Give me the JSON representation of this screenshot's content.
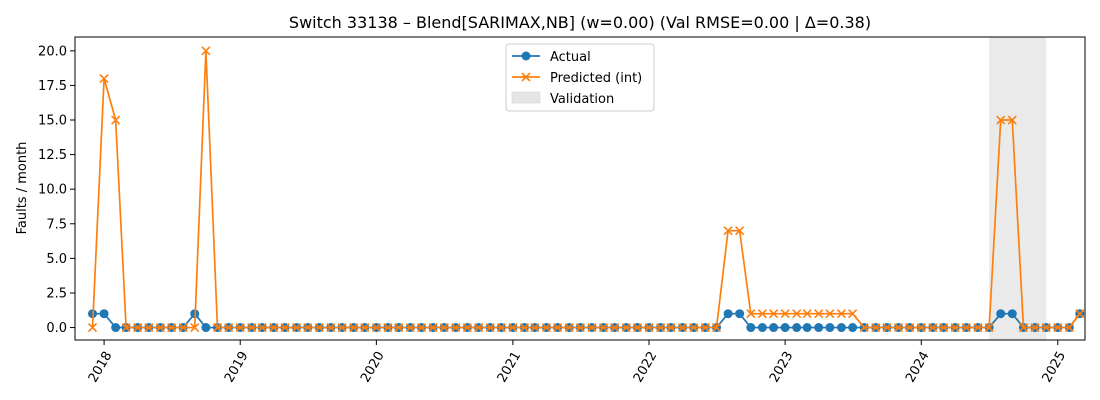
{
  "chart_data": {
    "type": "line",
    "title": "Switch 33138 – Blend[SARIMAX,NB] (w=0.00) (Val RMSE=0.00 | Δ=0.38)",
    "xlabel": "",
    "ylabel": "Faults / month",
    "ylim": [
      -0.9,
      21.0
    ],
    "yticks": [
      0.0,
      2.5,
      5.0,
      7.5,
      10.0,
      12.5,
      15.0,
      17.5,
      20.0
    ],
    "ytick_labels": [
      "0.0",
      "2.5",
      "5.0",
      "7.5",
      "10.0",
      "12.5",
      "15.0",
      "17.5",
      "20.0"
    ],
    "xlim": [
      "2017-10-15",
      "2025-03-15"
    ],
    "xticks": [
      "2018-01-01",
      "2019-01-01",
      "2020-01-01",
      "2021-01-01",
      "2022-01-01",
      "2023-01-01",
      "2024-01-01",
      "2025-01-01"
    ],
    "xtick_labels": [
      "2018",
      "2019",
      "2020",
      "2021",
      "2022",
      "2023",
      "2024",
      "2025"
    ],
    "x_start": "2017-12",
    "grid": false,
    "legend_position": "top-center",
    "shaded_region": {
      "name": "Validation",
      "x_start": "2024-07",
      "x_end": "2024-12",
      "color": "#e5e5e5"
    },
    "series": [
      {
        "name": "Actual",
        "color": "#1f77b4",
        "marker": "circle",
        "values": [
          1,
          1,
          0,
          0,
          0,
          0,
          0,
          0,
          0,
          1,
          0,
          0,
          0,
          0,
          0,
          0,
          0,
          0,
          0,
          0,
          0,
          0,
          0,
          0,
          0,
          0,
          0,
          0,
          0,
          0,
          0,
          0,
          0,
          0,
          0,
          0,
          0,
          0,
          0,
          0,
          0,
          0,
          0,
          0,
          0,
          0,
          0,
          0,
          0,
          0,
          0,
          0,
          0,
          0,
          0,
          0,
          1,
          1,
          0,
          0,
          0,
          0,
          0,
          0,
          0,
          0,
          0,
          0,
          0,
          0,
          0,
          0,
          0,
          0,
          0,
          0,
          0,
          0,
          0,
          0,
          1,
          1,
          0,
          0,
          0,
          0,
          0,
          1
        ]
      },
      {
        "name": "Predicted (int)",
        "color": "#ff7f0e",
        "marker": "x",
        "values": [
          0,
          18,
          15,
          0,
          0,
          0,
          0,
          0,
          0,
          0,
          20,
          0,
          0,
          0,
          0,
          0,
          0,
          0,
          0,
          0,
          0,
          0,
          0,
          0,
          0,
          0,
          0,
          0,
          0,
          0,
          0,
          0,
          0,
          0,
          0,
          0,
          0,
          0,
          0,
          0,
          0,
          0,
          0,
          0,
          0,
          0,
          0,
          0,
          0,
          0,
          0,
          0,
          0,
          0,
          0,
          0,
          7,
          7,
          1,
          1,
          1,
          1,
          1,
          1,
          1,
          1,
          1,
          1,
          0,
          0,
          0,
          0,
          0,
          0,
          0,
          0,
          0,
          0,
          0,
          0,
          15,
          15,
          0,
          0,
          0,
          0,
          0,
          1
        ]
      }
    ]
  }
}
